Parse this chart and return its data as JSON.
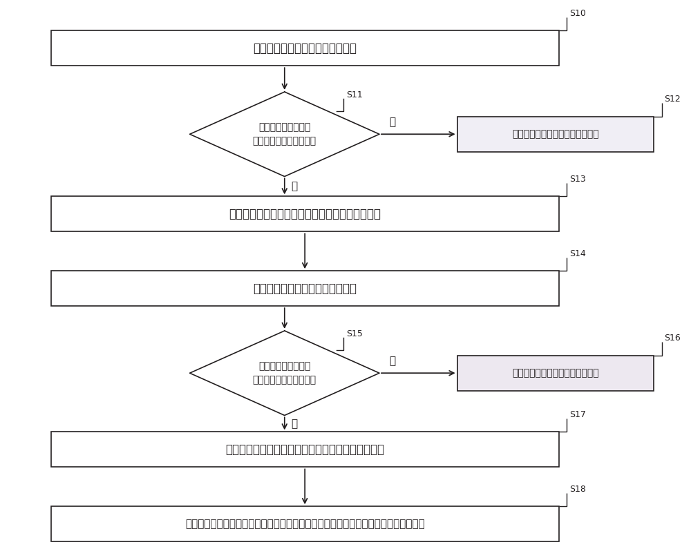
{
  "bg_color": "#ffffff",
  "border_color": "#231f20",
  "box_fill": "#ffffff",
  "diamond_fill": "#ffffff",
  "right_box_fill_1": "#f0eef5",
  "right_box_fill_2": "#ede8f0",
  "text_color": "#231f20",
  "arrow_color": "#231f20",
  "s10_text": "读取第一压力传感器的第一压力値",
  "s11_text": "根据第一压力値判断\n第一压力传感器出现故障",
  "s12_text": "根据机车当前的状态输出控制指令",
  "s13_text": "输出切换指令，切换指令包含切除第一压力传感器",
  "s14_text": "读取第二压力传感器的第二压力値",
  "s15_text": "根据第二压力値判断\n第二压力传感器出现故障",
  "s16_text": "根据机车当前的状态输出控制指令",
  "s17_text": "输出切换指令，切换指令还包含切除第二压力传感器",
  "s18_text": "根据机车当前的状态控制第二排风电磁阀得电或控制切换电磁阀失电且启动空气分配阀",
  "yes_text": "是",
  "no_text": "否",
  "labels": [
    "S10",
    "S11",
    "S12",
    "S13",
    "S14",
    "S15",
    "S16",
    "S17",
    "S18"
  ]
}
